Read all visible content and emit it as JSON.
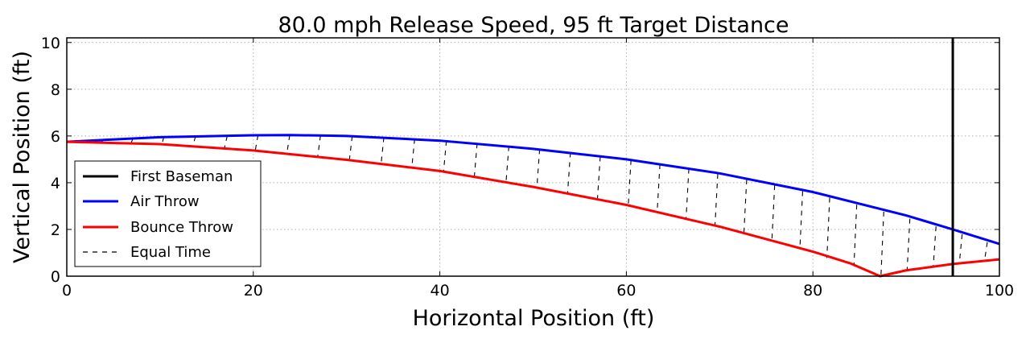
{
  "chart_data": {
    "type": "line",
    "title": "80.0 mph Release Speed, 95 ft Target Distance",
    "xlabel": "Horizontal Position (ft)",
    "ylabel": "Vertical Position (ft)",
    "xlim": [
      0,
      100
    ],
    "ylim": [
      0,
      10.2
    ],
    "xticks": [
      0,
      20,
      40,
      60,
      80,
      100
    ],
    "yticks": [
      0,
      2,
      4,
      6,
      8,
      10
    ],
    "grid": true,
    "legend_position": "lower-left",
    "first_baseman_x": 95,
    "series": [
      {
        "name": "First Baseman",
        "color": "#000000",
        "style": "solid-vertical"
      },
      {
        "name": "Air Throw",
        "color": "#0000ff",
        "x": [
          0,
          10,
          20,
          24,
          30,
          40,
          50,
          60,
          70,
          80,
          90,
          95,
          100
        ],
        "y": [
          5.75,
          5.95,
          6.03,
          6.04,
          6.0,
          5.8,
          5.45,
          5.0,
          4.4,
          3.6,
          2.6,
          2.0,
          1.38
        ]
      },
      {
        "name": "Bounce Throw",
        "color": "#ff0000",
        "x": [
          0,
          10,
          20,
          30,
          40,
          50,
          60,
          70,
          80,
          84,
          87.2,
          90,
          95,
          100
        ],
        "y": [
          5.75,
          5.65,
          5.38,
          4.98,
          4.5,
          3.82,
          3.05,
          2.12,
          1.05,
          0.55,
          0.0,
          0.25,
          0.52,
          0.72
        ]
      },
      {
        "name": "Equal Time",
        "color": "#000000",
        "style": "dashed",
        "segments": [
          {
            "x1": 3.9,
            "y1": 5.83,
            "x2": 3.7,
            "y2": 5.73
          },
          {
            "x1": 7.1,
            "y1": 5.9,
            "x2": 6.9,
            "y2": 5.7
          },
          {
            "x1": 10.4,
            "y1": 5.95,
            "x2": 10.2,
            "y2": 5.64
          },
          {
            "x1": 13.8,
            "y1": 5.98,
            "x2": 13.5,
            "y2": 5.56
          },
          {
            "x1": 17.2,
            "y1": 6.0,
            "x2": 16.9,
            "y2": 5.48
          },
          {
            "x1": 20.5,
            "y1": 6.03,
            "x2": 20.2,
            "y2": 5.36
          },
          {
            "x1": 23.9,
            "y1": 6.03,
            "x2": 23.6,
            "y2": 5.26
          },
          {
            "x1": 27.2,
            "y1": 6.02,
            "x2": 26.9,
            "y2": 5.1
          },
          {
            "x1": 30.6,
            "y1": 5.99,
            "x2": 30.3,
            "y2": 4.97
          },
          {
            "x1": 34.0,
            "y1": 5.94,
            "x2": 33.7,
            "y2": 4.81
          },
          {
            "x1": 37.3,
            "y1": 5.87,
            "x2": 37.0,
            "y2": 4.68
          },
          {
            "x1": 40.7,
            "y1": 5.79,
            "x2": 40.4,
            "y2": 4.47
          },
          {
            "x1": 44.0,
            "y1": 5.68,
            "x2": 43.7,
            "y2": 4.26
          },
          {
            "x1": 47.4,
            "y1": 5.56,
            "x2": 47.1,
            "y2": 4.05
          },
          {
            "x1": 50.7,
            "y1": 5.43,
            "x2": 50.4,
            "y2": 3.78
          },
          {
            "x1": 54.0,
            "y1": 5.29,
            "x2": 53.7,
            "y2": 3.56
          },
          {
            "x1": 57.2,
            "y1": 5.12,
            "x2": 56.9,
            "y2": 3.3
          },
          {
            "x1": 60.5,
            "y1": 4.97,
            "x2": 60.2,
            "y2": 3.02
          },
          {
            "x1": 63.6,
            "y1": 4.79,
            "x2": 63.3,
            "y2": 2.74
          },
          {
            "x1": 66.7,
            "y1": 4.6,
            "x2": 66.4,
            "y2": 2.45
          },
          {
            "x1": 69.8,
            "y1": 4.38,
            "x2": 69.5,
            "y2": 2.15
          },
          {
            "x1": 72.9,
            "y1": 4.14,
            "x2": 72.6,
            "y2": 1.84
          },
          {
            "x1": 75.9,
            "y1": 3.89,
            "x2": 75.6,
            "y2": 1.5
          },
          {
            "x1": 78.9,
            "y1": 3.63,
            "x2": 78.6,
            "y2": 1.16
          },
          {
            "x1": 81.8,
            "y1": 3.36,
            "x2": 81.5,
            "y2": 0.78
          },
          {
            "x1": 84.7,
            "y1": 3.06,
            "x2": 84.4,
            "y2": 0.43
          },
          {
            "x1": 87.6,
            "y1": 2.76,
            "x2": 87.3,
            "y2": 0.02
          },
          {
            "x1": 90.4,
            "y1": 2.46,
            "x2": 90.1,
            "y2": 0.25
          },
          {
            "x1": 93.2,
            "y1": 2.13,
            "x2": 92.9,
            "y2": 0.4
          },
          {
            "x1": 96.0,
            "y1": 1.79,
            "x2": 95.7,
            "y2": 0.55
          },
          {
            "x1": 98.7,
            "y1": 1.45,
            "x2": 98.4,
            "y2": 0.66
          }
        ]
      }
    ]
  }
}
